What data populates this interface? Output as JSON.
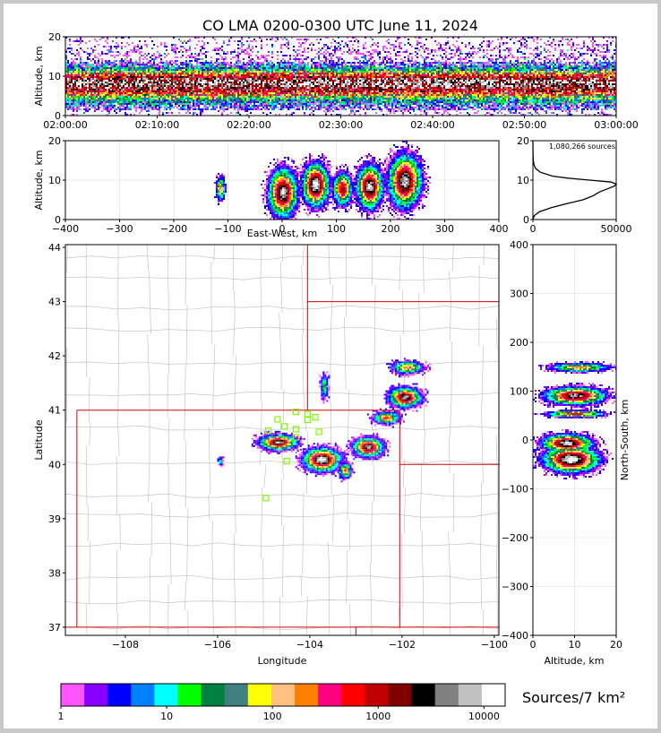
{
  "title": "CO LMA 0200-0300 UTC June 11, 2024",
  "colors": {
    "frame_bg": "#c8c8c8",
    "state_border": "#dd0000",
    "county_border": "#bbbbbb",
    "station_marker": "#7cfc00",
    "density_colors": [
      "#ff55ff",
      "#8800ff",
      "#0000ff",
      "#0080ff",
      "#00ffff",
      "#00ff00",
      "#008040",
      "#408080",
      "#ffff00",
      "#ffc080",
      "#ff8000",
      "#ff0080",
      "#ff0000",
      "#c00000",
      "#800000",
      "#000000",
      "#808080",
      "#c0c0c0",
      "#ffffff"
    ]
  },
  "chart_data": [
    {
      "id": "time_height",
      "type": "heatmap",
      "xlabel": "",
      "ylabel": "Altitude, km",
      "x_ticks": [
        "02:00:00",
        "02:10:00",
        "02:20:00",
        "02:30:00",
        "02:40:00",
        "02:50:00",
        "03:00:00"
      ],
      "xlim_minutes": [
        0,
        60
      ],
      "ylim": [
        0,
        20
      ],
      "y_ticks": [
        0,
        10,
        20
      ],
      "grid": true
    },
    {
      "id": "ew_height",
      "type": "heatmap",
      "xlabel": "East-West, km",
      "ylabel": "Altitude, km",
      "xlim": [
        -400,
        400
      ],
      "x_ticks": [
        -400,
        -300,
        -200,
        -100,
        0,
        100,
        200,
        300,
        400
      ],
      "ylim": [
        0,
        20
      ],
      "y_ticks": [
        0,
        10,
        20
      ],
      "grid": true,
      "cells": [
        {
          "x": -115,
          "z": 8,
          "rx": 7,
          "rz": 2.5,
          "d": 0.55
        },
        {
          "x": 0,
          "z": 7,
          "rx": 22,
          "rz": 5,
          "d": 0.95
        },
        {
          "x": 60,
          "z": 9,
          "rx": 20,
          "rz": 4.5,
          "d": 1.0
        },
        {
          "x": 110,
          "z": 8,
          "rx": 15,
          "rz": 3.5,
          "d": 0.75
        },
        {
          "x": 160,
          "z": 8.5,
          "rx": 20,
          "rz": 4.5,
          "d": 0.95
        },
        {
          "x": 225,
          "z": 10,
          "rx": 25,
          "rz": 5.5,
          "d": 0.95
        }
      ]
    },
    {
      "id": "altitude_histogram",
      "type": "line",
      "xlabel": "",
      "ylabel": "",
      "annotation": "1,080,266 sources",
      "xlim": [
        0,
        50000
      ],
      "x_ticks": [
        0,
        50000
      ],
      "ylim": [
        0,
        20
      ],
      "y_ticks": [
        0,
        10,
        20
      ],
      "altitude_km": [
        0,
        1,
        2,
        3,
        4,
        5,
        6,
        7,
        8,
        8.5,
        9,
        9.5,
        10,
        10.5,
        11,
        12,
        13,
        14,
        15,
        17,
        20
      ],
      "counts": [
        0,
        800,
        4000,
        11000,
        20000,
        30000,
        36000,
        40000,
        46000,
        49000,
        50000,
        47000,
        34000,
        21000,
        12000,
        4500,
        1500,
        600,
        200,
        50,
        0
      ]
    },
    {
      "id": "plan_view",
      "type": "heatmap",
      "xlabel": "Longitude",
      "ylabel": "Latitude",
      "xlim": [
        -109.3,
        -99.9
      ],
      "x_ticks": [
        -108,
        -106,
        -104,
        -102,
        -100
      ],
      "ylim": [
        36.85,
        44.05
      ],
      "y_ticks": [
        37,
        38,
        39,
        40,
        41,
        42,
        43,
        44
      ],
      "cells": [
        {
          "lon": -104.7,
          "lat": 40.42,
          "rx": 0.35,
          "ry": 0.12,
          "d": 0.9
        },
        {
          "lon": -103.75,
          "lat": 40.1,
          "rx": 0.35,
          "ry": 0.18,
          "d": 1.0
        },
        {
          "lon": -103.25,
          "lat": 39.9,
          "rx": 0.12,
          "ry": 0.12,
          "d": 0.6
        },
        {
          "lon": -102.75,
          "lat": 40.33,
          "rx": 0.28,
          "ry": 0.15,
          "d": 0.9
        },
        {
          "lon": -102.35,
          "lat": 40.87,
          "rx": 0.25,
          "ry": 0.1,
          "d": 0.6
        },
        {
          "lon": -101.95,
          "lat": 41.25,
          "rx": 0.3,
          "ry": 0.15,
          "d": 0.9
        },
        {
          "lon": -101.9,
          "lat": 41.8,
          "rx": 0.3,
          "ry": 0.1,
          "d": 0.55
        },
        {
          "lon": -103.7,
          "lat": 41.45,
          "rx": 0.08,
          "ry": 0.2,
          "d": 0.35
        },
        {
          "lon": -105.95,
          "lat": 40.08,
          "rx": 0.05,
          "ry": 0.08,
          "d": 0.3
        }
      ],
      "stations": [
        {
          "lon": -104.3,
          "lat": 40.97
        },
        {
          "lon": -104.05,
          "lat": 40.93
        },
        {
          "lon": -103.88,
          "lat": 40.87
        },
        {
          "lon": -104.05,
          "lat": 40.82
        },
        {
          "lon": -104.7,
          "lat": 40.83
        },
        {
          "lon": -104.55,
          "lat": 40.7
        },
        {
          "lon": -104.3,
          "lat": 40.65
        },
        {
          "lon": -104.3,
          "lat": 40.5
        },
        {
          "lon": -103.8,
          "lat": 40.6
        },
        {
          "lon": -104.9,
          "lat": 40.62
        },
        {
          "lon": -104.5,
          "lat": 40.06
        },
        {
          "lon": -104.95,
          "lat": 39.38
        }
      ]
    },
    {
      "id": "ns_height",
      "type": "heatmap",
      "xlabel": "Altitude, km",
      "ylabel": "North-South, km",
      "xlim": [
        0,
        20
      ],
      "x_ticks": [
        0,
        10,
        20
      ],
      "ylim": [
        -400,
        400
      ],
      "y_ticks": [
        -400,
        -300,
        -200,
        -100,
        0,
        100,
        200,
        300,
        400
      ],
      "grid": true,
      "cells": [
        {
          "y": 150,
          "z": 11,
          "ry": 8,
          "rz": 6,
          "d": 0.55
        },
        {
          "y": 92,
          "z": 10,
          "ry": 15,
          "rz": 6,
          "d": 0.9
        },
        {
          "y": 55,
          "z": 10,
          "ry": 6,
          "rz": 6,
          "d": 0.65
        },
        {
          "y": -5,
          "z": 8,
          "ry": 15,
          "rz": 5,
          "d": 0.95
        },
        {
          "y": -38,
          "z": 9,
          "ry": 22,
          "rz": 5.5,
          "d": 1.0
        }
      ]
    }
  ],
  "colorbar": {
    "label": "Sources/7 km²",
    "tick_labels": [
      "1",
      "10",
      "100",
      "1000",
      "10000"
    ],
    "decades": 4.2
  }
}
